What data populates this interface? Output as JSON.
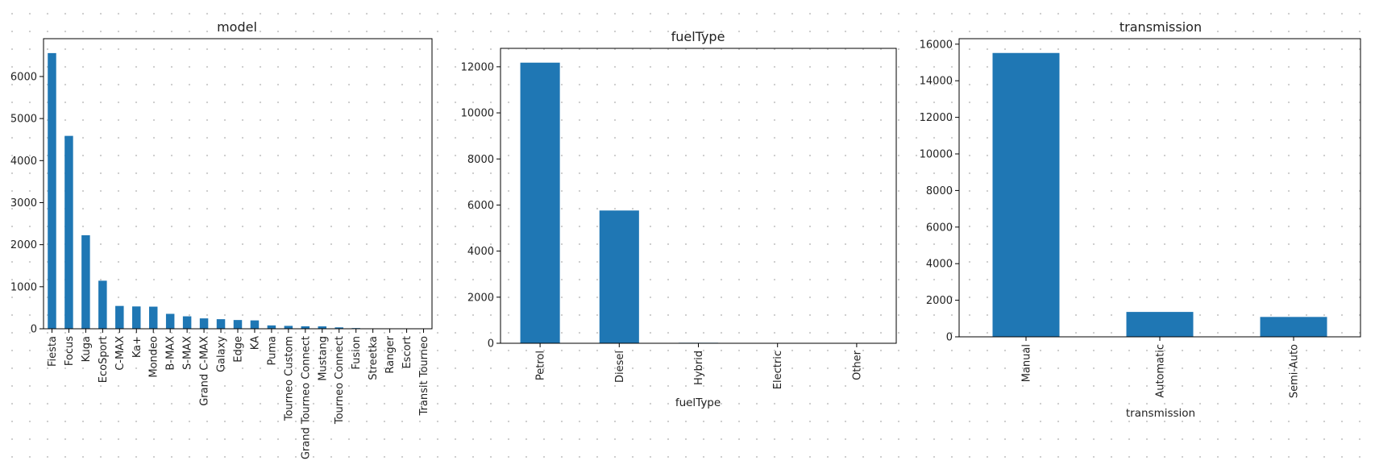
{
  "chart_data": [
    {
      "type": "bar",
      "title": "model",
      "xlabel": "",
      "ylabel": "",
      "ylim": [
        0,
        6900
      ],
      "yticks": [
        0,
        1000,
        2000,
        3000,
        4000,
        5000,
        6000
      ],
      "categories": [
        "Fiesta",
        "Focus",
        "Kuga",
        "EcoSport",
        "C-MAX",
        "Ka+",
        "Mondeo",
        "B-MAX",
        "S-MAX",
        "Grand C-MAX",
        "Galaxy",
        "Edge",
        "KA",
        "Puma",
        "Tourneo Custom",
        "Grand Tourneo Connect",
        "Mustang",
        "Tourneo Connect",
        "Fusion",
        "Streetka",
        "Ranger",
        "Escort",
        "Transit Tourneo"
      ],
      "values": [
        6557,
        4588,
        2225,
        1143,
        543,
        531,
        526,
        355,
        296,
        247,
        228,
        208,
        199,
        80,
        69,
        59,
        57,
        33,
        16,
        2,
        1,
        1,
        1
      ],
      "bar_color": "#1f77b4"
    },
    {
      "type": "bar",
      "title": "fuelType",
      "xlabel": "fuelType",
      "ylabel": "",
      "ylim": [
        0,
        12800
      ],
      "yticks": [
        0,
        2000,
        4000,
        6000,
        8000,
        10000,
        12000
      ],
      "categories": [
        "Petrol",
        "Diesel",
        "Hybrid",
        "Electric",
        "Other"
      ],
      "values": [
        12179,
        5762,
        22,
        2,
        1
      ],
      "bar_color": "#1f77b4"
    },
    {
      "type": "bar",
      "title": "transmission",
      "xlabel": "transmission",
      "ylabel": "",
      "ylim": [
        0,
        16300
      ],
      "yticks": [
        0,
        2000,
        4000,
        6000,
        8000,
        10000,
        12000,
        14000,
        16000
      ],
      "categories": [
        "Manual",
        "Automatic",
        "Semi-Auto"
      ],
      "values": [
        15518,
        1361,
        1087
      ],
      "bar_color": "#1f77b4"
    }
  ]
}
